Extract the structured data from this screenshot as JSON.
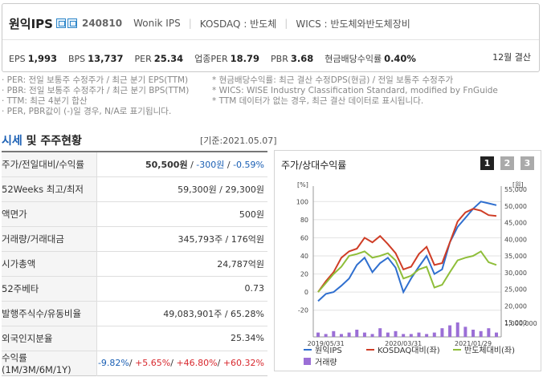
{
  "header": {
    "name": "원익IPS",
    "code": "240810",
    "eng_name": "Wonik IPS",
    "market": "KOSDAQ : 반도체",
    "wics": "WICS : 반도체와반도체장비",
    "metrics": [
      {
        "k": "EPS",
        "v": "1,993"
      },
      {
        "k": "BPS",
        "v": "13,737"
      },
      {
        "k": "PER",
        "v": "25.34"
      },
      {
        "k": "업종PER",
        "v": "18.79"
      },
      {
        "k": "PBR",
        "v": "3.68"
      },
      {
        "k": "현금배당수익률",
        "v": "0.40%"
      }
    ],
    "settlement": "12월 결산"
  },
  "notes": {
    "left": [
      "· PER: 전일 보통주 수정주가 / 최근 분기 EPS(TTM)",
      "· PBR: 전일 보통주 수정주가 / 최근 분기 BPS(TTM)",
      "· TTM: 최근 4분기 합산",
      "· PER, PBR값이 (-)일 경우, N/A로 표기됩니다."
    ],
    "right": [
      "* 현금배당수익률: 최근 결산 수정DPS(현금) / 전일 보통주 수정주가",
      "* WICS: WISE Industry Classification Standard, modified by FnGuide",
      "* TTM 데이터가 없는 경우, 최근 결산 데이터로 표시됩니다."
    ]
  },
  "section": {
    "title_a": "시세",
    "title_b": " 및 주주현황",
    "date": "[기준:2021.05.07]"
  },
  "quote_rows": [
    {
      "label": "주가/전일대비/수익률",
      "parts": [
        {
          "t": "50,500원",
          "c": "bold"
        },
        {
          "t": " / ",
          "c": ""
        },
        {
          "t": "-300원",
          "c": "neg"
        },
        {
          "t": " / ",
          "c": ""
        },
        {
          "t": "-0.59%",
          "c": "neg"
        }
      ]
    },
    {
      "label": "52Weeks 최고/최저",
      "parts": [
        {
          "t": "59,300원 / 29,300원",
          "c": ""
        }
      ]
    },
    {
      "label": "액면가",
      "parts": [
        {
          "t": "500원",
          "c": ""
        }
      ]
    },
    {
      "label": "거래량/거래대금",
      "parts": [
        {
          "t": "345,793주 / 176억원",
          "c": ""
        }
      ]
    },
    {
      "label": "시가총액",
      "parts": [
        {
          "t": "24,787억원",
          "c": ""
        }
      ]
    },
    {
      "label": "52주베타",
      "parts": [
        {
          "t": "0.73",
          "c": ""
        }
      ]
    },
    {
      "label": "발행주식수/유동비율",
      "parts": [
        {
          "t": "49,083,901주 / 65.28%",
          "c": ""
        }
      ]
    },
    {
      "label": "외국인지분율",
      "parts": [
        {
          "t": "25.34%",
          "c": ""
        }
      ]
    },
    {
      "label": "수익률 (1M/3M/6M/1Y)",
      "parts": [
        {
          "t": "-9.82%",
          "c": "neg"
        },
        {
          "t": "/ ",
          "c": ""
        },
        {
          "t": "+5.65%",
          "c": "pos"
        },
        {
          "t": "/ ",
          "c": ""
        },
        {
          "t": "+46.80%",
          "c": "pos"
        },
        {
          "t": "/ ",
          "c": ""
        },
        {
          "t": "+60.32%",
          "c": "pos"
        }
      ]
    }
  ],
  "chart_panel": {
    "title": "주가/상대수익률",
    "tabs": [
      "1",
      "2",
      "3"
    ]
  },
  "chart_data": {
    "type": "line",
    "left_axis_unit": "[%]",
    "right_axis_unit": "[원]",
    "left_ticks": [
      100,
      80,
      60,
      40,
      20,
      0,
      -20
    ],
    "right_ticks": [
      "55,000",
      "50,000",
      "45,000",
      "40,000",
      "35,000",
      "30,000",
      "25,000",
      "20,000",
      "15,000"
    ],
    "volume_tick": "1,000,000",
    "x_labels": [
      "2019/05/31",
      "2020/03/31",
      "2021/01/29"
    ],
    "ylim_pct": [
      -30,
      110
    ],
    "x": [
      0,
      1,
      2,
      3,
      4,
      5,
      6,
      7,
      8,
      9,
      10,
      11,
      12,
      13,
      14,
      15,
      16,
      17,
      18,
      19,
      20,
      21,
      22,
      23
    ],
    "series": [
      {
        "name": "원익IPS",
        "color": "#2f6fcf",
        "values": [
          -10,
          -2,
          0,
          7,
          15,
          30,
          38,
          22,
          32,
          38,
          27,
          0,
          15,
          28,
          40,
          20,
          25,
          55,
          72,
          82,
          92,
          100,
          98,
          96
        ]
      },
      {
        "name": "KOSDAQ대비(좌)",
        "color": "#cf3d26",
        "values": [
          0,
          12,
          22,
          38,
          45,
          48,
          60,
          55,
          62,
          53,
          43,
          25,
          28,
          42,
          50,
          30,
          32,
          55,
          78,
          88,
          92,
          90,
          85,
          84
        ]
      },
      {
        "name": "반도체대비(좌)",
        "color": "#8fbe3a",
        "values": [
          0,
          10,
          20,
          28,
          40,
          42,
          45,
          38,
          40,
          43,
          35,
          15,
          18,
          25,
          28,
          5,
          8,
          22,
          35,
          38,
          40,
          45,
          33,
          30
        ]
      }
    ],
    "volume": [
      0.3,
      0.2,
      0.4,
      0.2,
      0.3,
      0.5,
      0.3,
      0.2,
      0.6,
      0.3,
      0.4,
      0.2,
      0.2,
      0.3,
      0.2,
      0.3,
      0.6,
      0.8,
      1.0,
      0.7,
      0.5,
      0.4,
      0.6,
      0.3
    ],
    "volume_name": "거래량",
    "volume_color": "#9b6fd6"
  }
}
